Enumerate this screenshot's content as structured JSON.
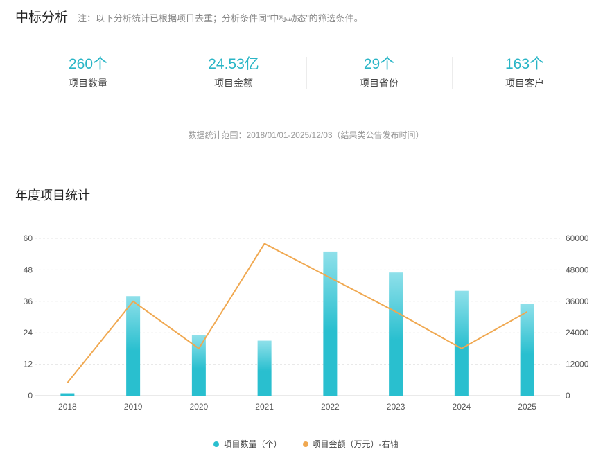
{
  "header": {
    "title": "中标分析",
    "note": "注：以下分析统计已根据项目去重；分析条件同“中标动态”的筛选条件。"
  },
  "stats": [
    {
      "value": "260个",
      "label": "项目数量"
    },
    {
      "value": "24.53亿",
      "label": "项目金额"
    },
    {
      "value": "29个",
      "label": "项目省份"
    },
    {
      "value": "163个",
      "label": "项目客户"
    }
  ],
  "range_note": "数据统计范围：2018/01/01-2025/12/03（结果类公告发布时间）",
  "section_title": "年度项目统计",
  "colors": {
    "bar": "#29bfcf",
    "bar_top": "#8fe0ea",
    "line": "#f0a850",
    "accent": "#29b5c6"
  },
  "chart_data": {
    "type": "bar",
    "categories": [
      "2018",
      "2019",
      "2020",
      "2021",
      "2022",
      "2023",
      "2024",
      "2025"
    ],
    "series": [
      {
        "name": "项目数量（个）",
        "type": "bar",
        "axis": "left",
        "values": [
          1,
          38,
          23,
          21,
          55,
          47,
          40,
          35
        ]
      },
      {
        "name": "项目金额（万元）-右轴",
        "type": "line",
        "axis": "right",
        "values": [
          5000,
          36000,
          18000,
          58000,
          45000,
          32000,
          18000,
          32000
        ]
      }
    ],
    "y_left": {
      "min": 0,
      "max": 60,
      "ticks": [
        0,
        12,
        24,
        36,
        48,
        60
      ]
    },
    "y_right": {
      "min": 0,
      "max": 60000,
      "ticks": [
        0,
        12000,
        24000,
        36000,
        48000,
        60000
      ]
    },
    "grid": true,
    "legend_position": "bottom"
  },
  "legend": [
    {
      "label": "项目数量（个）",
      "color": "#29bfcf"
    },
    {
      "label": "项目金额（万元）-右轴",
      "color": "#f0a850"
    }
  ]
}
